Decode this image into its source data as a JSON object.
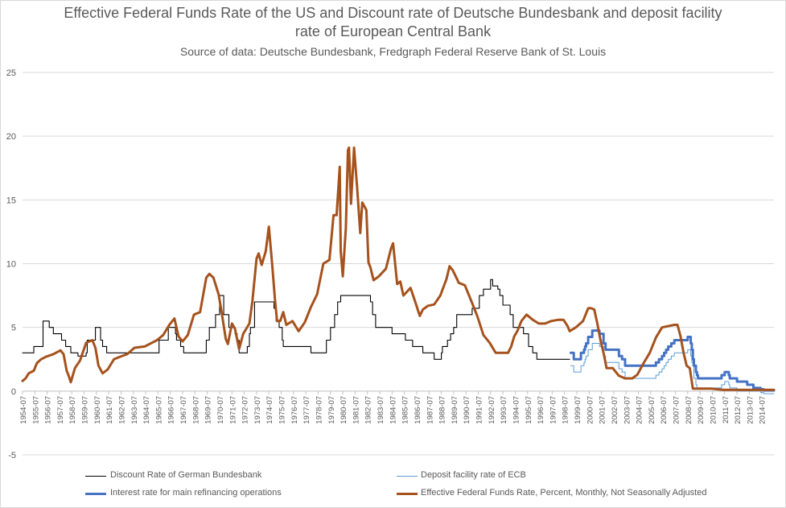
{
  "chart_data": {
    "type": "line",
    "title": "Effective Federal Funds Rate of the US and Discount rate of Deutsche Bundesbank and deposit facility",
    "title_line2": "rate of  European Central Bank",
    "subtitle": "Source of data: Deutsche Bundesbank, Fredgraph Federal Reserve Bank of St. Louis",
    "xlabel": "",
    "ylabel": "",
    "ylim": [
      -5,
      25
    ],
    "yticks": [
      "25",
      "20",
      "15",
      "10",
      "5",
      "0",
      "-5"
    ],
    "xlim": [
      "1954-07",
      "2015-07"
    ],
    "xticks": [
      "1954-07",
      "1955-07",
      "1956-07",
      "1957-07",
      "1958-07",
      "1959-07",
      "1960-07",
      "1961-07",
      "1962-07",
      "1963-07",
      "1964-07",
      "1965-07",
      "1966-07",
      "1967-07",
      "1968-07",
      "1969-07",
      "1970-07",
      "1971-07",
      "1972-07",
      "1973-07",
      "1974-07",
      "1975-07",
      "1976-07",
      "1977-07",
      "1978-07",
      "1979-07",
      "1980-07",
      "1981-07",
      "1982-07",
      "1983-07",
      "1984-07",
      "1985-07",
      "1986-07",
      "1987-07",
      "1988-07",
      "1989-07",
      "1990-07",
      "1991-07",
      "1992-07",
      "1993-07",
      "1994-07",
      "1995-07",
      "1996-07",
      "1997-07",
      "1998-07",
      "1999-07",
      "2000-07",
      "2001-07",
      "2002-07",
      "2003-07",
      "2004-07",
      "2005-07",
      "2006-07",
      "2007-07",
      "2008-07",
      "2009-07",
      "2010-07",
      "2011-07",
      "2012-07",
      "2013-07",
      "2014-07"
    ],
    "grid": true,
    "legend_position": "bottom",
    "series": [
      {
        "name": "Discount Rate of German Bundesbank",
        "color": "#000000",
        "x": [
          "1954-07",
          "1955-06",
          "1955-08",
          "1956-03",
          "1956-05",
          "1956-09",
          "1957-01",
          "1957-09",
          "1958-01",
          "1958-06",
          "1959-01",
          "1959-09",
          "1959-10",
          "1960-06",
          "1960-11",
          "1961-01",
          "1961-05",
          "1965-01",
          "1965-08",
          "1966-05",
          "1966-12",
          "1967-01",
          "1967-05",
          "1967-08",
          "1969-03",
          "1969-06",
          "1969-09",
          "1970-03",
          "1970-07",
          "1970-11",
          "1971-04",
          "1971-10",
          "1971-12",
          "1972-02",
          "1972-10",
          "1972-12",
          "1973-01",
          "1973-05",
          "1974-10",
          "1974-12",
          "1975-02",
          "1975-05",
          "1975-08",
          "1975-09",
          "1977-07",
          "1977-12",
          "1979-01",
          "1979-03",
          "1979-07",
          "1979-11",
          "1980-02",
          "1980-05",
          "1982-08",
          "1982-10",
          "1982-12",
          "1983-03",
          "1984-07",
          "1985-08",
          "1986-03",
          "1987-01",
          "1987-12",
          "1988-07",
          "1988-08",
          "1989-01",
          "1989-04",
          "1989-07",
          "1989-10",
          "1991-01",
          "1991-08",
          "1991-12",
          "1992-07",
          "1992-09",
          "1993-02",
          "1993-04",
          "1993-07",
          "1994-02",
          "1994-05",
          "1995-03",
          "1995-08",
          "1995-12",
          "1996-04",
          "1998-12"
        ],
        "values": [
          3,
          3.5,
          3.5,
          5.5,
          5.5,
          5,
          4.5,
          4,
          3.5,
          3,
          2.75,
          3,
          4,
          5,
          4,
          3.5,
          3,
          3,
          4,
          5,
          4.5,
          4,
          3.5,
          3,
          3,
          4,
          5,
          6,
          7.5,
          6,
          5,
          4.5,
          4,
          3,
          3.5,
          4.5,
          5,
          7,
          7,
          6.5,
          5.5,
          5,
          4,
          3.5,
          3.5,
          3,
          3,
          4,
          5,
          6,
          7,
          7.5,
          7.5,
          7,
          6,
          5,
          4.5,
          4,
          3.5,
          3,
          2.5,
          3,
          3.5,
          4,
          4.5,
          5,
          6,
          6.5,
          7.5,
          8,
          8.75,
          8.25,
          8,
          7.5,
          6.75,
          6,
          5,
          4.5,
          3.5,
          3,
          2.5,
          2.5
        ]
      },
      {
        "name": "Deposit facility rate of ECB",
        "color": "#5b9bd5",
        "x": [
          "1999-01",
          "1999-04",
          "1999-11",
          "2000-02",
          "2000-03",
          "2000-04",
          "2000-06",
          "2000-10",
          "2001-05",
          "2001-09",
          "2001-11",
          "2002-12",
          "2003-03",
          "2003-06",
          "2005-12",
          "2006-03",
          "2006-06",
          "2006-08",
          "2006-10",
          "2006-12",
          "2007-03",
          "2007-06",
          "2008-07",
          "2008-10",
          "2008-11",
          "2008-12",
          "2009-01",
          "2009-03",
          "2009-04",
          "2011-04",
          "2011-07",
          "2011-11",
          "2011-12",
          "2012-07",
          "2013-12",
          "2014-06",
          "2014-09",
          "2015-07"
        ],
        "values": [
          2,
          1.5,
          2,
          2.25,
          2.5,
          2.75,
          3.25,
          3.75,
          3.5,
          2.75,
          2.25,
          1.75,
          1.5,
          1,
          1.25,
          1.5,
          1.75,
          2,
          2.25,
          2.5,
          2.75,
          3,
          3.25,
          2.75,
          2.25,
          2,
          1,
          0.5,
          0.25,
          0.5,
          0.75,
          0.5,
          0.25,
          0,
          0,
          -0.1,
          -0.2,
          -0.2
        ]
      },
      {
        "name": "Interest rate for main refinancing operations",
        "color": "#4472c4",
        "x": [
          "1999-01",
          "1999-04",
          "1999-11",
          "2000-02",
          "2000-03",
          "2000-04",
          "2000-06",
          "2000-10",
          "2001-05",
          "2001-09",
          "2001-11",
          "2002-12",
          "2003-03",
          "2003-06",
          "2005-12",
          "2006-03",
          "2006-06",
          "2006-08",
          "2006-10",
          "2006-12",
          "2007-03",
          "2007-06",
          "2008-07",
          "2008-10",
          "2008-11",
          "2008-12",
          "2009-01",
          "2009-03",
          "2009-04",
          "2009-05",
          "2011-04",
          "2011-07",
          "2011-11",
          "2011-12",
          "2012-07",
          "2013-05",
          "2013-11",
          "2014-06",
          "2014-09",
          "2015-07"
        ],
        "values": [
          3,
          2.5,
          3,
          3.25,
          3.5,
          3.75,
          4.25,
          4.75,
          4.5,
          3.75,
          3.25,
          2.75,
          2.5,
          2,
          2.25,
          2.5,
          2.75,
          3,
          3.25,
          3.5,
          3.75,
          4,
          4.25,
          3.75,
          3.25,
          2.5,
          2,
          1.5,
          1.25,
          1,
          1.25,
          1.5,
          1.25,
          1,
          0.75,
          0.5,
          0.25,
          0.15,
          0.05,
          0.05
        ]
      },
      {
        "name": "Effective Federal Funds Rate, Percent, Monthly, Not Seasonally Adjusted",
        "color": "#a5521d",
        "x": [
          "1954-07",
          "1954-10",
          "1955-01",
          "1955-06",
          "1955-09",
          "1956-01",
          "1956-06",
          "1957-01",
          "1957-08",
          "1957-11",
          "1958-02",
          "1958-04",
          "1958-06",
          "1958-10",
          "1959-03",
          "1959-09",
          "1960-03",
          "1960-06",
          "1960-09",
          "1961-01",
          "1961-06",
          "1961-12",
          "1962-06",
          "1963-01",
          "1963-08",
          "1964-06",
          "1965-06",
          "1965-12",
          "1966-06",
          "1966-11",
          "1967-03",
          "1967-07",
          "1967-12",
          "1968-06",
          "1968-12",
          "1969-06",
          "1969-09",
          "1970-01",
          "1970-06",
          "1970-09",
          "1971-01",
          "1971-03",
          "1971-07",
          "1971-10",
          "1972-02",
          "1972-06",
          "1972-12",
          "1973-03",
          "1973-07",
          "1973-09",
          "1973-12",
          "1974-04",
          "1974-07",
          "1974-10",
          "1975-01",
          "1975-03",
          "1975-06",
          "1975-09",
          "1975-12",
          "1976-06",
          "1976-12",
          "1977-06",
          "1977-12",
          "1978-06",
          "1978-12",
          "1979-06",
          "1979-10",
          "1980-01",
          "1980-04",
          "1980-05",
          "1980-07",
          "1980-10",
          "1980-12",
          "1981-01",
          "1981-03",
          "1981-06",
          "1981-09",
          "1981-12",
          "1982-02",
          "1982-06",
          "1982-08",
          "1982-10",
          "1983-01",
          "1983-06",
          "1984-01",
          "1984-06",
          "1984-08",
          "1984-12",
          "1985-03",
          "1985-06",
          "1986-01",
          "1986-06",
          "1986-10",
          "1987-01",
          "1987-06",
          "1987-12",
          "1988-06",
          "1988-12",
          "1989-03",
          "1989-06",
          "1989-09",
          "1989-12",
          "1990-06",
          "1991-01",
          "1991-06",
          "1991-12",
          "1992-06",
          "1992-12",
          "1993-06",
          "1993-12",
          "1994-03",
          "1994-06",
          "1994-09",
          "1995-01",
          "1995-06",
          "1995-12",
          "1996-06",
          "1996-12",
          "1997-06",
          "1998-01",
          "1998-06",
          "1998-10",
          "1998-12",
          "1999-06",
          "2000-01",
          "2000-06",
          "2000-09",
          "2000-12",
          "2001-03",
          "2001-06",
          "2001-09",
          "2001-12",
          "2002-06",
          "2002-12",
          "2003-06",
          "2004-01",
          "2004-06",
          "2004-12",
          "2005-06",
          "2005-12",
          "2006-06",
          "2007-06",
          "2007-09",
          "2007-12",
          "2008-03",
          "2008-06",
          "2008-09",
          "2008-12",
          "2009-06",
          "2010-06",
          "2011-06",
          "2012-06",
          "2013-06",
          "2014-06",
          "2015-07"
        ],
        "values": [
          0.8,
          1.0,
          1.4,
          1.6,
          2.2,
          2.5,
          2.7,
          2.9,
          3.2,
          2.9,
          1.6,
          1.2,
          0.7,
          1.8,
          2.4,
          3.8,
          4.0,
          3.4,
          2.0,
          1.4,
          1.7,
          2.5,
          2.7,
          2.9,
          3.4,
          3.5,
          4.0,
          4.4,
          5.2,
          5.7,
          4.3,
          3.9,
          4.4,
          6.0,
          6.2,
          8.9,
          9.2,
          8.9,
          7.6,
          6.2,
          4.1,
          3.7,
          5.3,
          4.9,
          3.3,
          4.5,
          5.3,
          7.1,
          10.4,
          10.8,
          9.9,
          11.0,
          12.9,
          10.1,
          7.1,
          5.5,
          5.5,
          6.2,
          5.2,
          5.5,
          4.7,
          5.4,
          6.6,
          7.6,
          10.0,
          10.3,
          13.8,
          13.8,
          17.6,
          11.0,
          9.0,
          12.8,
          18.9,
          19.1,
          14.7,
          19.1,
          15.9,
          12.4,
          14.8,
          14.2,
          10.1,
          9.7,
          8.7,
          9.0,
          9.6,
          11.2,
          11.6,
          8.4,
          8.6,
          7.5,
          8.1,
          6.9,
          5.9,
          6.4,
          6.7,
          6.8,
          7.5,
          8.8,
          9.8,
          9.5,
          9.0,
          8.5,
          8.3,
          6.9,
          5.9,
          4.4,
          3.8,
          3.0,
          3.0,
          3.0,
          3.5,
          4.3,
          4.7,
          5.5,
          6.0,
          5.6,
          5.3,
          5.3,
          5.5,
          5.6,
          5.6,
          5.1,
          4.7,
          5.0,
          5.5,
          6.5,
          6.5,
          6.4,
          5.3,
          4.0,
          3.0,
          1.8,
          1.8,
          1.2,
          1.0,
          1.0,
          1.3,
          2.2,
          3.0,
          4.2,
          5.0,
          5.2,
          5.2,
          4.3,
          3.0,
          2.0,
          1.8,
          0.2,
          0.2,
          0.2,
          0.1,
          0.1,
          0.1,
          0.1,
          0.1
        ]
      }
    ]
  }
}
